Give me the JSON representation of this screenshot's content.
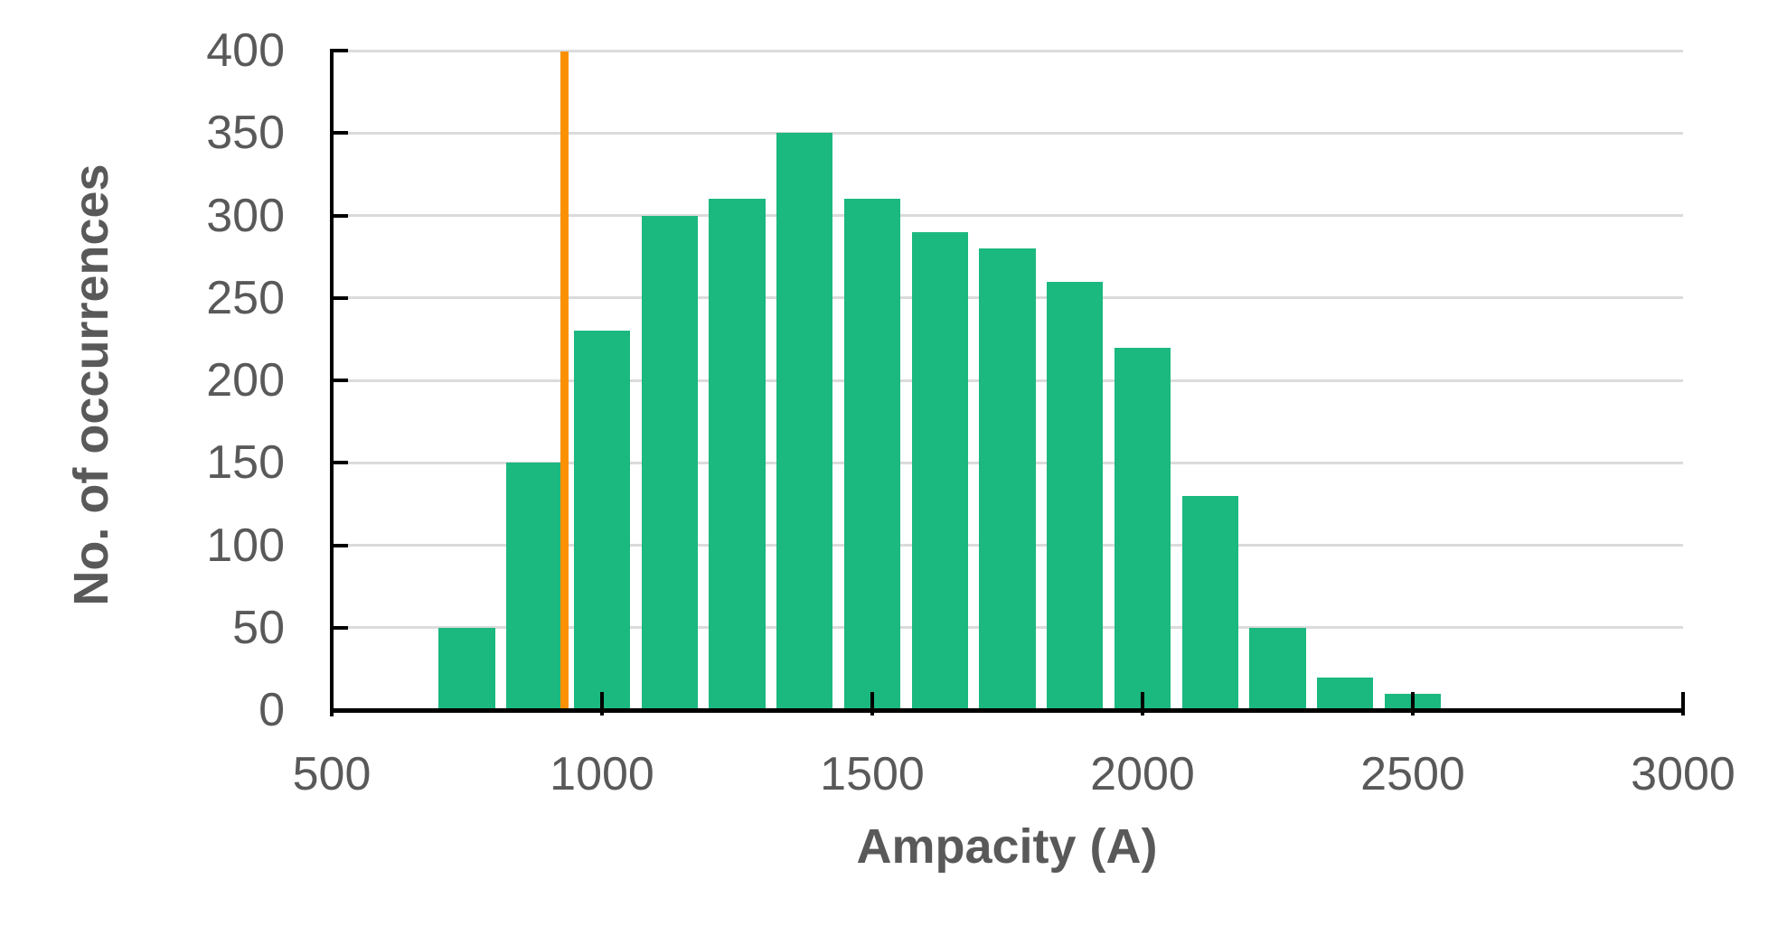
{
  "figure": {
    "background": "#FFFFFF"
  },
  "chart_data": {
    "type": "bar",
    "subtype": "histogram",
    "title": "",
    "xlabel": "Ampacity (A)",
    "ylabel": "No. of occurrences",
    "xlim": [
      500,
      3000
    ],
    "ylim": [
      0,
      400
    ],
    "x_ticks": [
      500,
      1000,
      1500,
      2000,
      2500,
      3000
    ],
    "y_ticks": [
      0,
      50,
      100,
      150,
      200,
      250,
      300,
      350,
      400
    ],
    "grid": "horizontal-on",
    "legend": "none",
    "bin_width": 125,
    "bar_width_units": 104,
    "bar_centers": [
      750,
      875,
      1000,
      1125,
      1250,
      1375,
      1500,
      1625,
      1750,
      1875,
      2000,
      2125,
      2250,
      2375,
      2500
    ],
    "values": [
      50,
      150,
      230,
      300,
      310,
      350,
      310,
      290,
      280,
      260,
      220,
      130,
      50,
      20,
      10
    ],
    "reference_line_x": 930,
    "colors": {
      "bar": "#1BB87F",
      "reference_line": "#FB9100",
      "grid": "#DBDBDB",
      "axis": "#000000",
      "text": "#595959"
    }
  }
}
